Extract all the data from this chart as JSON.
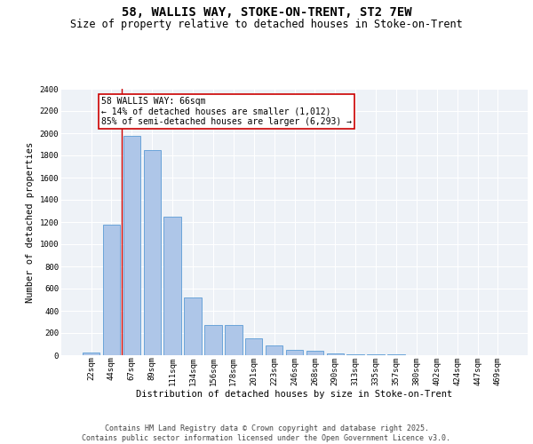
{
  "title_line1": "58, WALLIS WAY, STOKE-ON-TRENT, ST2 7EW",
  "title_line2": "Size of property relative to detached houses in Stoke-on-Trent",
  "categories": [
    "22sqm",
    "44sqm",
    "67sqm",
    "89sqm",
    "111sqm",
    "134sqm",
    "156sqm",
    "178sqm",
    "201sqm",
    "223sqm",
    "246sqm",
    "268sqm",
    "290sqm",
    "313sqm",
    "335sqm",
    "357sqm",
    "380sqm",
    "402sqm",
    "424sqm",
    "447sqm",
    "469sqm"
  ],
  "values": [
    25,
    1175,
    1975,
    1850,
    1245,
    520,
    275,
    275,
    150,
    85,
    50,
    40,
    15,
    10,
    7,
    5,
    3,
    2,
    1,
    1,
    1
  ],
  "bar_color": "#aec6e8",
  "bar_edge_color": "#5b9bd5",
  "annotation_line1": "58 WALLIS WAY: 66sqm",
  "annotation_line2": "← 14% of detached houses are smaller (1,012)",
  "annotation_line3": "85% of semi-detached houses are larger (6,293) →",
  "vline_color": "#cc0000",
  "xlabel": "Distribution of detached houses by size in Stoke-on-Trent",
  "ylabel": "Number of detached properties",
  "ylim": [
    0,
    2400
  ],
  "yticks": [
    0,
    200,
    400,
    600,
    800,
    1000,
    1200,
    1400,
    1600,
    1800,
    2000,
    2200,
    2400
  ],
  "footer_line1": "Contains HM Land Registry data © Crown copyright and database right 2025.",
  "footer_line2": "Contains public sector information licensed under the Open Government Licence v3.0.",
  "background_color": "#eef2f7",
  "grid_color": "#ffffff",
  "title_fontsize": 10,
  "subtitle_fontsize": 8.5,
  "axis_label_fontsize": 7.5,
  "tick_fontsize": 6.5,
  "annotation_fontsize": 7,
  "footer_fontsize": 6
}
